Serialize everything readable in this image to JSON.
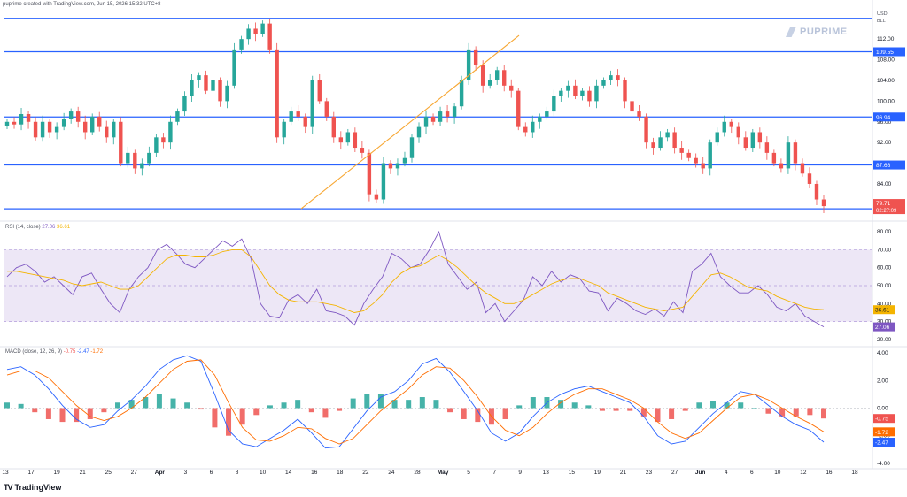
{
  "header": {
    "caption": "puprime created with TradingView.com, Jun 15, 2026 15:32 UTC+8",
    "currency": "USD",
    "unit": "BLL"
  },
  "brand": {
    "watermark": "PUPRIME",
    "footer": "TradingView"
  },
  "colors": {
    "up": "#26a69a",
    "down": "#ef5350",
    "hline": "#2962ff",
    "trend": "#f7a733",
    "rsi": "#7e57c2",
    "rsi_ma": "#f4b400",
    "macd": "#2962ff",
    "signal": "#ff6d00",
    "band": "#ede7f6",
    "grid": "#e0e3eb"
  },
  "chart_data": [
    {
      "type": "candlestick",
      "title": "",
      "x_ticks": [
        "13",
        "17",
        "19",
        "21",
        "25",
        "27",
        "Apr",
        "3",
        "6",
        "8",
        "10",
        "14",
        "16",
        "18",
        "22",
        "24",
        "28",
        "May",
        "5",
        "7",
        "9",
        "13",
        "15",
        "19",
        "21",
        "23",
        "27",
        "Jun",
        "4",
        "6",
        "10",
        "12",
        "16",
        "18"
      ],
      "y_ticks": [
        84.0,
        88.0,
        92.0,
        96.0,
        100.0,
        104.0,
        108.0,
        112.0
      ],
      "ylim": [
        77.5,
        117.5
      ],
      "horizontal_levels": [
        116.0,
        109.55,
        96.94,
        87.66,
        79.19
      ],
      "level_labels": [
        "109.55",
        "96.94",
        "87.66",
        "79.19"
      ],
      "last_price": "79.71",
      "countdown": "02:27:09",
      "trendline": [
        [
          0,
          79.19
        ],
        [
          0,
          112.7
        ]
      ],
      "trendline_x": [
        "Apr 16",
        "May 10"
      ],
      "close_path": [
        96.0,
        95.5,
        97.5,
        96.0,
        93.0,
        96.0,
        94.0,
        95.0,
        96.5,
        98.0,
        96.0,
        94.0,
        97.0,
        95.0,
        93.0,
        96.0,
        88.0,
        90.0,
        87.0,
        88.0,
        90.0,
        93.0,
        92.0,
        96.0,
        98.0,
        101.0,
        104.0,
        105.0,
        102.0,
        104.0,
        100.0,
        103.0,
        110.0,
        112.0,
        114.0,
        113.0,
        115.0,
        110.0,
        93.0,
        96.0,
        98.0,
        97.0,
        95.0,
        104.0,
        100.0,
        97.0,
        93.0,
        92.0,
        94.0,
        91.0,
        90.0,
        82.0,
        81.0,
        88.0,
        87.0,
        88.0,
        89.0,
        93.0,
        95.0,
        97.0,
        96.0,
        98.0,
        97.0,
        99.0,
        104.0,
        110.0,
        107.0,
        103.0,
        104.0,
        106.0,
        103.0,
        102.0,
        95.0,
        94.0,
        96.0,
        97.0,
        98.0,
        101.0,
        102.0,
        103.0,
        101.0,
        102.0,
        100.0,
        103.0,
        104.0,
        105.0,
        104.0,
        100.0,
        98.0,
        97.0,
        92.0,
        91.0,
        93.0,
        94.0,
        91.0,
        90.0,
        89.0,
        88.0,
        87.0,
        92.0,
        94.0,
        96.0,
        95.0,
        93.0,
        91.0,
        94.0,
        92.0,
        90.0,
        88.0,
        87.0,
        92.0,
        88.0,
        86.0,
        84.0,
        81.0,
        79.71
      ]
    },
    {
      "type": "line",
      "title": "RSI (14, close)",
      "values_label": [
        "27.06",
        "36.61"
      ],
      "y_ticks": [
        20.0,
        30.0,
        40.0,
        50.0,
        60.0,
        70.0,
        80.0
      ],
      "ylim": [
        18,
        84
      ],
      "band": [
        30,
        70
      ],
      "midline": 50,
      "series": [
        {
          "name": "RSI",
          "values": [
            55,
            60,
            62,
            58,
            52,
            55,
            50,
            45,
            55,
            57,
            48,
            40,
            35,
            48,
            55,
            60,
            70,
            73,
            68,
            62,
            60,
            65,
            70,
            75,
            72,
            76,
            65,
            40,
            33,
            32,
            42,
            45,
            40,
            48,
            36,
            35,
            33,
            28,
            40,
            48,
            55,
            68,
            65,
            60,
            62,
            70,
            80,
            62,
            55,
            48,
            52,
            35,
            40,
            30,
            36,
            42,
            55,
            50,
            58,
            52,
            56,
            54,
            47,
            46,
            36,
            43,
            40,
            36,
            34,
            37,
            33,
            41,
            35,
            58,
            62,
            68,
            55,
            50,
            46,
            46,
            50,
            45,
            38,
            36,
            40,
            33,
            30,
            27.06
          ]
        },
        {
          "name": "RSI MA",
          "values": [
            58,
            58,
            57,
            56,
            55,
            54,
            53,
            51,
            50,
            51,
            52,
            50,
            48,
            48,
            50,
            55,
            60,
            65,
            67,
            67,
            66,
            66,
            67,
            69,
            70,
            70,
            66,
            58,
            50,
            45,
            42,
            41,
            41,
            41,
            40,
            39,
            37,
            35,
            36,
            40,
            45,
            52,
            57,
            60,
            61,
            64,
            67,
            64,
            60,
            55,
            50,
            46,
            43,
            40,
            40,
            42,
            45,
            48,
            51,
            53,
            54,
            54,
            52,
            50,
            46,
            44,
            42,
            40,
            38,
            37,
            36,
            37,
            38,
            44,
            50,
            56,
            57,
            55,
            52,
            49,
            48,
            47,
            44,
            42,
            40,
            38,
            37,
            36.61
          ]
        }
      ]
    },
    {
      "type": "bar+line",
      "title": "MACD (close, 12, 26, 9)",
      "values_label": [
        "-0.75",
        "-2.47",
        "-1.72"
      ],
      "y_ticks": [
        -4.0,
        -2.0,
        0.0,
        2.0,
        4.0
      ],
      "ylim": [
        -4.2,
        4.2
      ],
      "series": [
        {
          "name": "MACD",
          "values": [
            2.8,
            3.0,
            2.4,
            1.4,
            0.2,
            -0.8,
            -1.4,
            -1.2,
            -0.2,
            0.6,
            1.6,
            2.8,
            3.5,
            3.8,
            3.4,
            1.0,
            -1.6,
            -2.6,
            -2.8,
            -2.2,
            -1.6,
            -0.8,
            -1.8,
            -2.9,
            -2.8,
            -1.5,
            -0.2,
            0.8,
            1.2,
            2.0,
            3.2,
            3.6,
            2.6,
            1.2,
            -0.2,
            -1.8,
            -2.4,
            -1.8,
            -0.6,
            0.4,
            1.0,
            1.4,
            1.6,
            1.2,
            0.8,
            0.4,
            -0.6,
            -2.0,
            -2.6,
            -2.4,
            -1.4,
            -0.4,
            0.4,
            1.2,
            1.0,
            0.2,
            -0.6,
            -1.2,
            -1.6,
            -2.47
          ]
        },
        {
          "name": "Signal",
          "values": [
            2.4,
            2.7,
            2.7,
            2.2,
            1.2,
            0.2,
            -0.6,
            -0.9,
            -0.6,
            0.0,
            0.8,
            1.8,
            2.8,
            3.4,
            3.5,
            2.4,
            0.4,
            -1.4,
            -2.3,
            -2.4,
            -2.0,
            -1.4,
            -1.5,
            -2.2,
            -2.6,
            -2.2,
            -1.2,
            -0.2,
            0.6,
            1.4,
            2.4,
            3.0,
            2.9,
            2.0,
            0.8,
            -0.6,
            -1.6,
            -2.0,
            -1.4,
            -0.4,
            0.4,
            1.0,
            1.4,
            1.4,
            1.0,
            0.6,
            0.0,
            -1.0,
            -1.8,
            -2.2,
            -1.8,
            -0.9,
            0.0,
            0.8,
            1.0,
            0.6,
            0.0,
            -0.6,
            -1.1,
            -1.72
          ]
        }
      ],
      "histogram": [
        0.4,
        0.3,
        -0.3,
        -0.8,
        -1.0,
        -1.0,
        -0.8,
        -0.3,
        0.4,
        0.6,
        0.8,
        1.0,
        0.7,
        0.4,
        -0.1,
        -1.4,
        -2.0,
        -1.2,
        -0.5,
        0.2,
        0.4,
        0.6,
        -0.3,
        -0.7,
        -0.2,
        0.7,
        1.0,
        1.0,
        0.6,
        0.6,
        0.8,
        0.6,
        -0.3,
        -0.8,
        -1.0,
        -1.2,
        -0.8,
        0.2,
        0.8,
        0.8,
        0.6,
        0.4,
        0.2,
        -0.2,
        -0.2,
        -0.2,
        -0.6,
        -1.0,
        -0.8,
        -0.2,
        0.4,
        0.5,
        0.4,
        0.4,
        0.0,
        -0.4,
        -0.6,
        -0.6,
        -0.5,
        -0.75
      ]
    }
  ]
}
